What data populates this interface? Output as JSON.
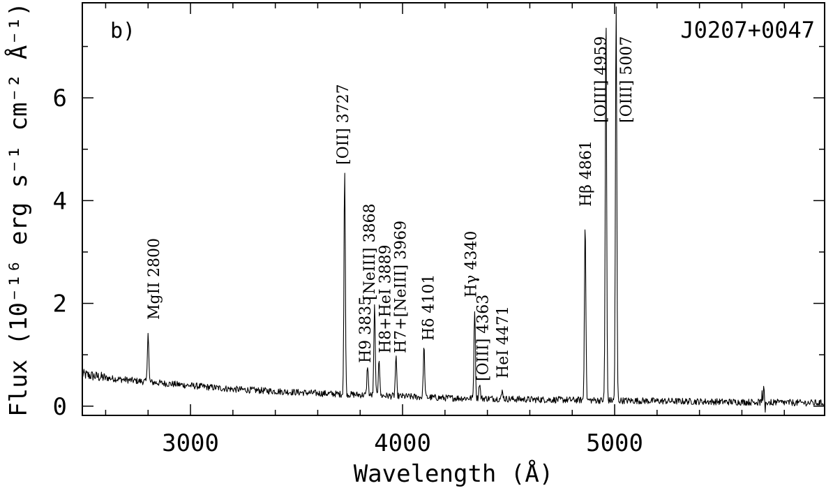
{
  "chart_data": {
    "type": "line",
    "panel_label": "b)",
    "object_name": "J0207+0047",
    "xlabel": "Wavelength (Å)",
    "ylabel": "Flux (10⁻¹⁶ erg s⁻¹ cm⁻² Å⁻¹)",
    "xlim": [
      2490,
      5990
    ],
    "ylim": [
      -0.18,
      7.85
    ],
    "x_ticks": [
      3000,
      4000,
      5000
    ],
    "x_minor_step": 200,
    "y_ticks": [
      0,
      2,
      4,
      6
    ],
    "y_minor_step": 1,
    "grid": false,
    "continuum": [
      [
        2490,
        0.62
      ],
      [
        2600,
        0.55
      ],
      [
        2800,
        0.47
      ],
      [
        3000,
        0.4
      ],
      [
        3200,
        0.33
      ],
      [
        3400,
        0.29
      ],
      [
        3600,
        0.25
      ],
      [
        3800,
        0.22
      ],
      [
        4000,
        0.19
      ],
      [
        4200,
        0.16
      ],
      [
        4400,
        0.15
      ],
      [
        4600,
        0.13
      ],
      [
        4800,
        0.12
      ],
      [
        5000,
        0.11
      ],
      [
        5200,
        0.1
      ],
      [
        5400,
        0.09
      ],
      [
        5600,
        0.08
      ],
      [
        5800,
        0.07
      ],
      [
        5990,
        0.06
      ]
    ],
    "emission_lines": [
      {
        "label": "MgII 2800",
        "wavelength": 2800,
        "peak": 1.45
      },
      {
        "label": "[OII] 3727",
        "wavelength": 3727,
        "peak": 4.55
      },
      {
        "label": "H9 3835",
        "wavelength": 3835,
        "peak": 0.8
      },
      {
        "label": "[NeIII] 3868",
        "wavelength": 3868,
        "peak": 1.95
      },
      {
        "label": "H8+HeI 3889",
        "wavelength": 3889,
        "peak": 0.95
      },
      {
        "label": "H7+[NeIII] 3969",
        "wavelength": 3969,
        "peak": 0.95
      },
      {
        "label": "Hδ 4101",
        "wavelength": 4101,
        "peak": 1.15
      },
      {
        "label": "Hγ 4340",
        "wavelength": 4340,
        "peak": 1.9
      },
      {
        "label": "[OIII] 4363",
        "wavelength": 4363,
        "peak": 0.45
      },
      {
        "label": "HeI 4471",
        "wavelength": 4471,
        "peak": 0.3
      },
      {
        "label": "Hβ 4861",
        "wavelength": 4861,
        "peak": 3.65
      },
      {
        "label": "[OIII] 4959",
        "wavelength": 4959,
        "peak": 7.7
      },
      {
        "label": "[OIII] 5007",
        "wavelength": 5007,
        "peak": 7.85
      }
    ]
  }
}
